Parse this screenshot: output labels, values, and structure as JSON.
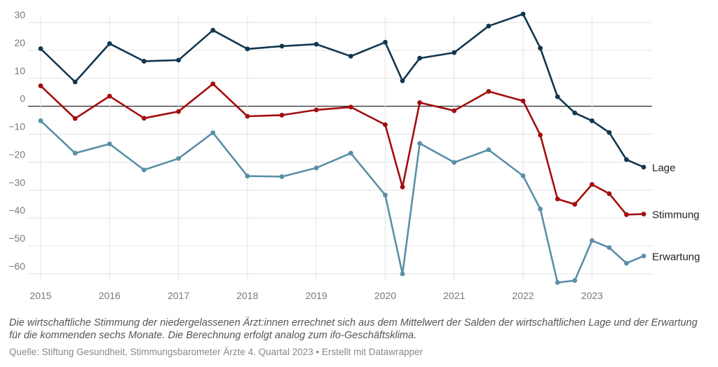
{
  "caption": "Die wirtschaftliche Stimmung der niedergelassenen Ärzt:innen errechnet sich aus dem Mittelwert der Salden der wirtschaftlichen Lage und der Erwartung für die kommenden sechs Monate. Die Berechnung erfolgt analog zum ifo-Geschäftsklima.",
  "source": "Quelle: Stiftung Gesundheit, Stimmungsbarometer Ärzte 4. Quartal 2023 • Erstellt mit Datawrapper",
  "chart_data": {
    "type": "line",
    "title": "",
    "xlabel": "",
    "ylabel": "",
    "xlim": [
      2015,
      2023.75
    ],
    "ylim": [
      -62,
      30
    ],
    "x_ticks": [
      2015,
      2016,
      2017,
      2018,
      2019,
      2020,
      2021,
      2022,
      2023
    ],
    "x_tick_labels": [
      "2015",
      "2016",
      "2017",
      "2018",
      "2019",
      "2020",
      "2021",
      "2022",
      "2023"
    ],
    "y_ticks": [
      30,
      20,
      10,
      0,
      -10,
      -20,
      -30,
      -40,
      -50,
      -60
    ],
    "y_tick_labels": [
      "30",
      "20",
      "10",
      "0",
      "−10",
      "−20",
      "−30",
      "−40",
      "−50",
      "−60"
    ],
    "grid": true,
    "zero_line": true,
    "legend": "direct labels at line ends (right)",
    "series": [
      {
        "name": "Lage",
        "color": "#12374f",
        "x": [
          2015,
          2015.5,
          2016,
          2016.5,
          2017,
          2017.5,
          2018,
          2018.5,
          2019,
          2019.5,
          2020,
          2020.25,
          2020.5,
          2021,
          2021.5,
          2022,
          2022.25,
          2022.5,
          2022.75,
          2023,
          2023.25,
          2023.5,
          2023.75
        ],
        "values": [
          20.6,
          8.7,
          22.4,
          16.1,
          16.5,
          27.2,
          20.5,
          21.5,
          22.2,
          17.9,
          22.9,
          9.1,
          17.2,
          19.2,
          28.7,
          33.0,
          20.8,
          3.4,
          -2.4,
          -5.2,
          -9.4,
          -19.1,
          -21.8
        ]
      },
      {
        "name": "Stimmung",
        "color": "#a30d0d",
        "x": [
          2015,
          2015.5,
          2016,
          2016.5,
          2017,
          2017.5,
          2018,
          2018.5,
          2019,
          2019.5,
          2020,
          2020.25,
          2020.5,
          2021,
          2021.5,
          2022,
          2022.25,
          2022.5,
          2022.75,
          2023,
          2023.25,
          2023.5,
          2023.75
        ],
        "values": [
          7.3,
          -4.4,
          3.6,
          -4.3,
          -1.9,
          8.0,
          -3.6,
          -3.2,
          -1.3,
          -0.3,
          -6.6,
          -28.9,
          1.3,
          -1.6,
          5.3,
          1.9,
          -10.3,
          -33.2,
          -35.1,
          -28.0,
          -31.3,
          -38.8,
          -38.6
        ]
      },
      {
        "name": "Erwartung",
        "color": "#5a8fa8",
        "x": [
          2015,
          2015.5,
          2016,
          2016.5,
          2017,
          2017.5,
          2018,
          2018.5,
          2019,
          2019.5,
          2020,
          2020.25,
          2020.5,
          2021,
          2021.5,
          2022,
          2022.25,
          2022.5,
          2022.75,
          2023,
          2023.25,
          2023.5,
          2023.75
        ],
        "values": [
          -5.2,
          -16.8,
          -13.5,
          -22.8,
          -18.7,
          -9.5,
          -25.0,
          -25.2,
          -22.1,
          -16.8,
          -31.8,
          -60.0,
          -13.3,
          -20.1,
          -15.6,
          -24.9,
          -36.8,
          -63.1,
          -62.4,
          -48.1,
          -50.6,
          -56.2,
          -53.6
        ]
      }
    ]
  }
}
